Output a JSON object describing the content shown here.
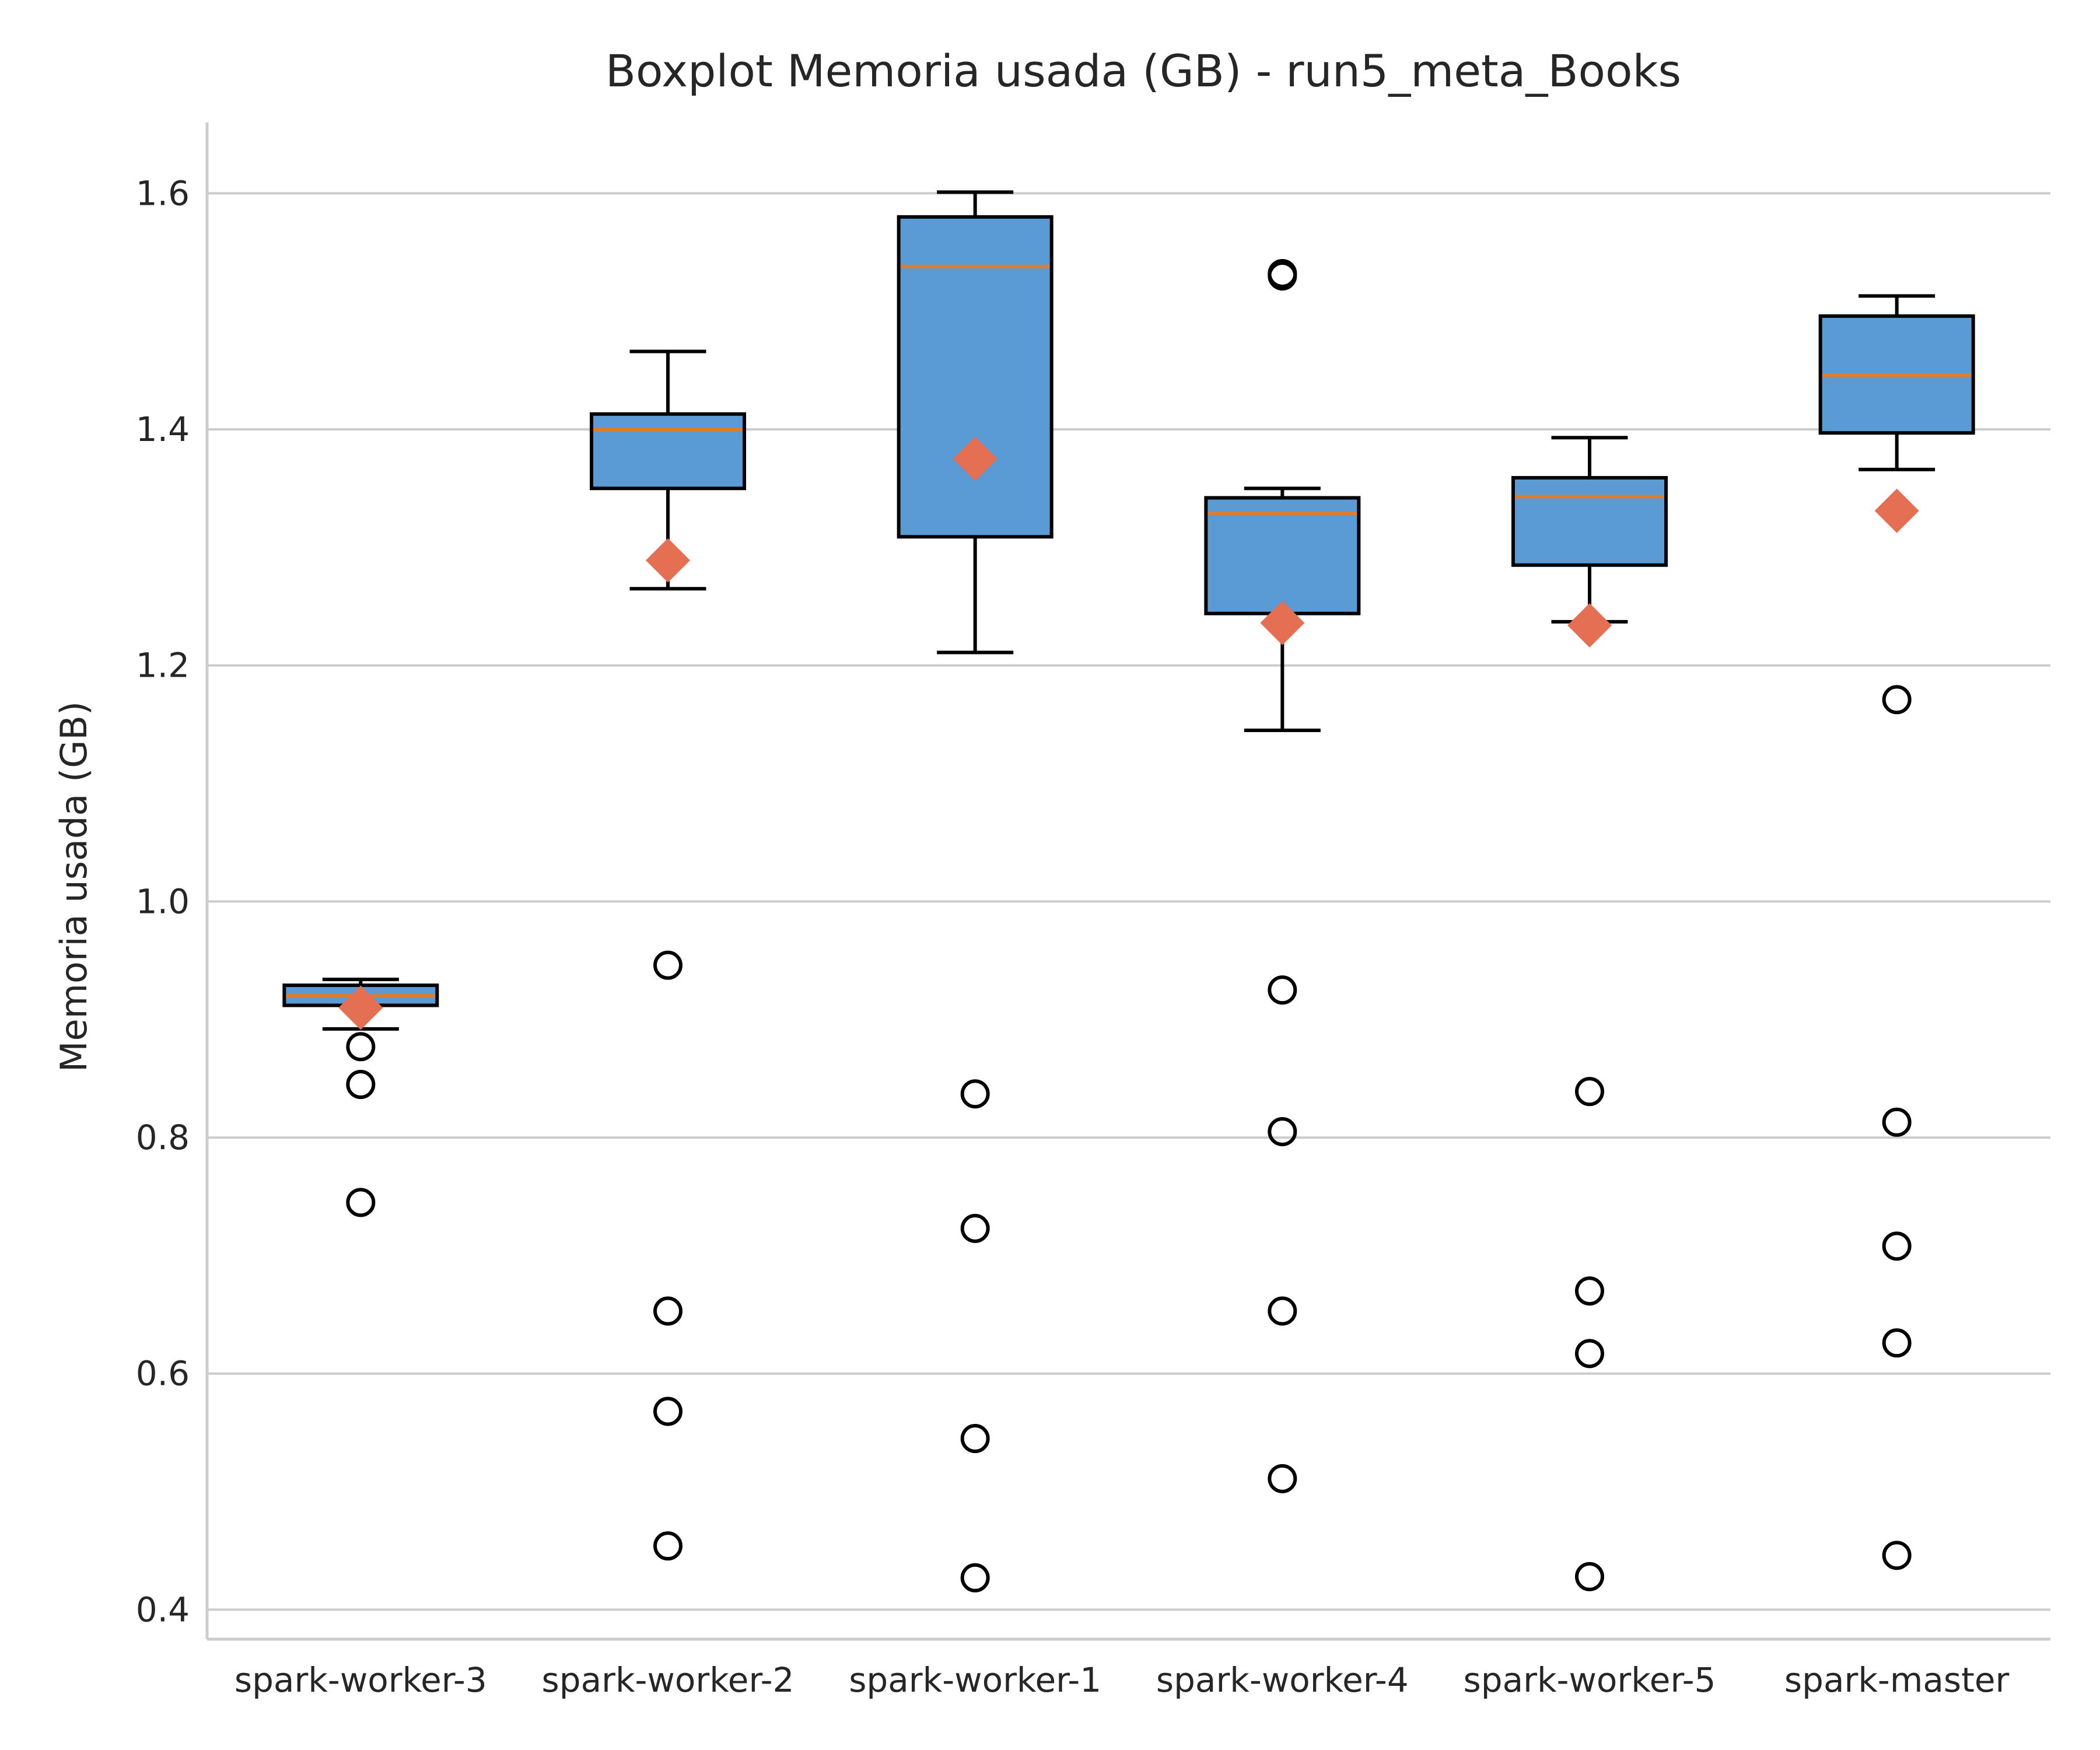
{
  "chart_data": {
    "type": "boxplot",
    "title": "Boxplot Memoria usada (GB) - run5_meta_Books",
    "xlabel": "",
    "ylabel": "Memoria usada (GB)",
    "ylim": [
      0.375,
      1.66
    ],
    "yticks": [
      0.4,
      0.6,
      0.8,
      1.0,
      1.2,
      1.4,
      1.6
    ],
    "ytick_labels": [
      "0.4",
      "0.6",
      "0.8",
      "1.0",
      "1.2",
      "1.4",
      "1.6"
    ],
    "grid": "horizontal",
    "categories": [
      "spark-worker-3",
      "spark-worker-2",
      "spark-worker-1",
      "spark-worker-4",
      "spark-worker-5",
      "spark-master"
    ],
    "boxes": [
      {
        "whisker_low": 0.892,
        "q1": 0.912,
        "median": 0.92,
        "q3": 0.929,
        "whisker_high": 0.934,
        "mean": 0.91,
        "outliers": [
          0.877,
          0.845,
          0.745
        ]
      },
      {
        "whisker_low": 1.265,
        "q1": 1.35,
        "median": 1.4,
        "q3": 1.413,
        "whisker_high": 1.466,
        "mean": 1.289,
        "outliers": [
          0.946,
          0.653,
          0.568,
          0.454
        ]
      },
      {
        "whisker_low": 1.211,
        "q1": 1.309,
        "median": 1.538,
        "q3": 1.58,
        "whisker_high": 1.601,
        "mean": 1.375,
        "outliers": [
          0.837,
          0.723,
          0.545,
          0.427
        ]
      },
      {
        "whisker_low": 1.145,
        "q1": 1.244,
        "median": 1.329,
        "q3": 1.342,
        "whisker_high": 1.35,
        "mean": 1.236,
        "outliers": [
          1.532,
          1.53,
          0.925,
          0.805,
          0.653,
          0.511
        ]
      },
      {
        "whisker_low": 1.237,
        "q1": 1.285,
        "median": 1.343,
        "q3": 1.359,
        "whisker_high": 1.393,
        "mean": 1.234,
        "outliers": [
          0.839,
          0.67,
          0.617,
          0.428
        ]
      },
      {
        "whisker_low": 1.366,
        "q1": 1.397,
        "median": 1.446,
        "q3": 1.496,
        "whisker_high": 1.513,
        "mean": 1.331,
        "outliers": [
          1.171,
          0.813,
          0.708,
          0.626,
          0.446
        ]
      }
    ],
    "colors": {
      "box_fill": "#5b9bd5",
      "box_edge": "#000000",
      "median": "#e07b28",
      "mean_marker": "#e46f52",
      "grid": "#cccccc",
      "axis": "#cccccc"
    }
  }
}
